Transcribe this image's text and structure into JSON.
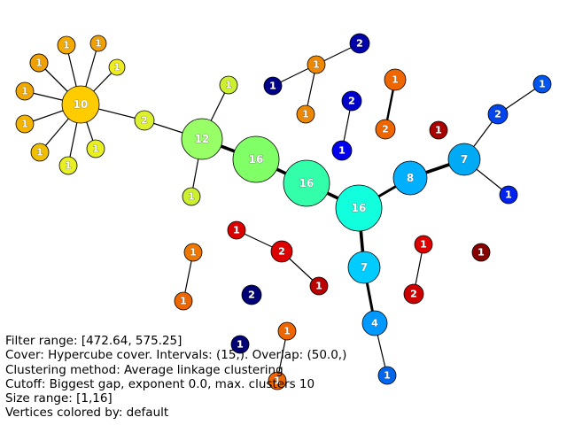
{
  "graph": {
    "nodes": [
      {
        "id": "n10",
        "label": "10",
        "color": "#ffcc00"
      },
      {
        "id": "a1",
        "label": "1",
        "color": "#f5b400"
      },
      {
        "id": "a2",
        "label": "1",
        "color": "#f5aa00"
      },
      {
        "id": "a3",
        "label": "1",
        "color": "#f0a000"
      },
      {
        "id": "a4",
        "label": "1",
        "color": "#f0a000"
      },
      {
        "id": "a5",
        "label": "1",
        "color": "#f0a800"
      },
      {
        "id": "a6",
        "label": "1",
        "color": "#f5b400"
      },
      {
        "id": "a7",
        "label": "1",
        "color": "#e8f020"
      },
      {
        "id": "a8",
        "label": "1",
        "color": "#e8f020"
      },
      {
        "id": "a9",
        "label": "1",
        "color": "#f0c000"
      },
      {
        "id": "a10",
        "label": "1",
        "color": "#ecec20"
      },
      {
        "id": "n2y",
        "label": "2",
        "color": "#ddf030"
      },
      {
        "id": "n12",
        "label": "12",
        "color": "#99ff66"
      },
      {
        "id": "b1",
        "label": "1",
        "color": "#ccf030"
      },
      {
        "id": "b2",
        "label": "1",
        "color": "#ccf030"
      },
      {
        "id": "n16a",
        "label": "16",
        "color": "#80ff66"
      },
      {
        "id": "n16b",
        "label": "16",
        "color": "#33ffaa"
      },
      {
        "id": "n16c",
        "label": "16",
        "color": "#11ffdd"
      },
      {
        "id": "n8",
        "label": "8",
        "color": "#00b0ff"
      },
      {
        "id": "n7a",
        "label": "7",
        "color": "#00aaf5"
      },
      {
        "id": "c1",
        "label": "1",
        "color": "#0055ee"
      },
      {
        "id": "n2b",
        "label": "2",
        "color": "#0044ee"
      },
      {
        "id": "c3",
        "label": "1",
        "color": "#0022ee"
      },
      {
        "id": "n7b",
        "label": "7",
        "color": "#00ccff"
      },
      {
        "id": "n4",
        "label": "4",
        "color": "#0099ff"
      },
      {
        "id": "d1",
        "label": "1",
        "color": "#0066ee"
      },
      {
        "id": "e2",
        "label": "2",
        "color": "#0000aa"
      },
      {
        "id": "e1",
        "label": "1",
        "color": "#000088"
      },
      {
        "id": "f1",
        "label": "1",
        "color": "#ee8800"
      },
      {
        "id": "f2",
        "label": "1",
        "color": "#ee8800"
      },
      {
        "id": "g2",
        "label": "2",
        "color": "#0000cc"
      },
      {
        "id": "g1",
        "label": "1",
        "color": "#0000ee"
      },
      {
        "id": "h1",
        "label": "1",
        "color": "#dd0000"
      },
      {
        "id": "h2",
        "label": "2",
        "color": "#dd0000"
      },
      {
        "id": "h3",
        "label": "1",
        "color": "#bb0000"
      },
      {
        "id": "i1",
        "label": "1",
        "color": "#ee6600"
      },
      {
        "id": "i2",
        "label": "2",
        "color": "#ee6600"
      },
      {
        "id": "j1",
        "label": "1",
        "color": "#ee7700"
      },
      {
        "id": "j2",
        "label": "1",
        "color": "#ee6600"
      },
      {
        "id": "k1",
        "label": "1",
        "color": "#dd0000"
      },
      {
        "id": "k2",
        "label": "2",
        "color": "#cc0000"
      },
      {
        "id": "l1",
        "label": "1",
        "color": "#aa0000"
      },
      {
        "id": "m1",
        "label": "1",
        "color": "#880000"
      },
      {
        "id": "m2",
        "label": "2",
        "color": "#000077"
      },
      {
        "id": "m3",
        "label": "1",
        "color": "#000077"
      }
    ],
    "edges": [
      [
        "n10",
        "a1",
        1
      ],
      [
        "n10",
        "a2",
        1
      ],
      [
        "n10",
        "a3",
        1
      ],
      [
        "n10",
        "a4",
        1
      ],
      [
        "n10",
        "a5",
        1
      ],
      [
        "n10",
        "a6",
        1
      ],
      [
        "n10",
        "a7",
        1
      ],
      [
        "n10",
        "a8",
        1
      ],
      [
        "n10",
        "a9",
        1
      ],
      [
        "n10",
        "a10",
        1
      ],
      [
        "n10",
        "n2y",
        1
      ],
      [
        "n2y",
        "n12",
        1
      ],
      [
        "n12",
        "b1",
        1
      ],
      [
        "n12",
        "b2",
        1
      ],
      [
        "n12",
        "n16a",
        3
      ],
      [
        "n16a",
        "n16b",
        3
      ],
      [
        "n16b",
        "n16c",
        3
      ],
      [
        "n16c",
        "n8",
        2.5
      ],
      [
        "n8",
        "n7a",
        3
      ],
      [
        "n7a",
        "n2b",
        1
      ],
      [
        "n2b",
        "c1",
        1
      ],
      [
        "n7a",
        "c3",
        1
      ],
      [
        "n16c",
        "n7b",
        3
      ],
      [
        "n7b",
        "n4",
        2.5
      ],
      [
        "n4",
        "d1",
        1
      ],
      [
        "e2",
        "e1",
        1
      ],
      [
        "f1",
        "f2",
        1
      ],
      [
        "h1",
        "h2",
        1
      ],
      [
        "h2",
        "h3",
        1
      ],
      [
        "i1",
        "i2",
        2
      ],
      [
        "j1",
        "j2",
        1
      ],
      [
        "k1",
        "k2",
        1
      ],
      [
        "g2",
        "g1",
        1
      ]
    ]
  },
  "info": [
    "Filter range: [472.64, 575.25]",
    "Cover: Hypercube cover. Intervals: (15,). Overlap: (50.0,)",
    "Clustering method: Average linkage clustering",
    "Cutoff: Biggest gap, exponent 0.0, max. clusters 10",
    "Size range: [1,16]",
    "Vertices colored by: default"
  ]
}
